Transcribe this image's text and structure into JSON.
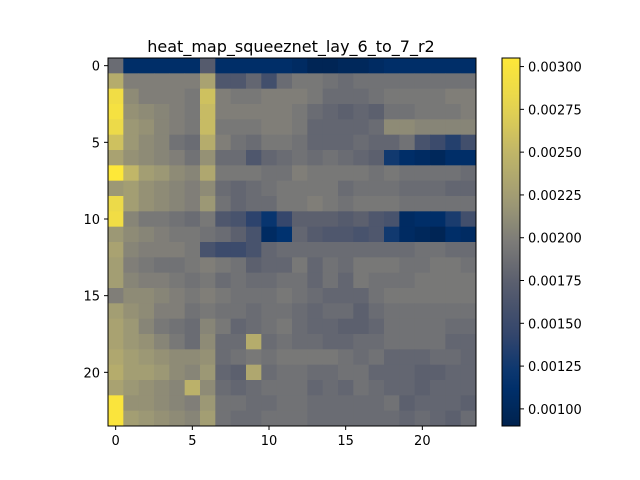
{
  "chart_data": {
    "type": "heatmap",
    "title": "heat_map_squeeznet_lay_6_to_7_r2",
    "xlabel": "",
    "ylabel": "",
    "colormap": "cividis",
    "vmin": 0.0009,
    "vmax": 0.00305,
    "x_ticks": [
      0,
      5,
      10,
      15,
      20
    ],
    "y_ticks": [
      0,
      5,
      10,
      15,
      20
    ],
    "colorbar_ticks": [
      "0.00100",
      "0.00125",
      "0.00150",
      "0.00175",
      "0.00200",
      "0.00225",
      "0.00250",
      "0.00275",
      "0.00300"
    ],
    "colorbar_tick_values": [
      0.001,
      0.00125,
      0.0015,
      0.00175,
      0.002,
      0.00225,
      0.0025,
      0.00275,
      0.003
    ],
    "values": [
      [
        0.00185,
        0.0011,
        0.0011,
        0.0011,
        0.0011,
        0.0011,
        0.0017,
        0.0011,
        0.0011,
        0.0011,
        0.0011,
        0.0011,
        0.00105,
        0.00095,
        0.00095,
        0.001,
        0.001,
        0.00105,
        0.0011,
        0.0011,
        0.0011,
        0.0011,
        0.0011,
        0.0011
      ],
      [
        0.0024,
        0.002,
        0.002,
        0.002,
        0.002,
        0.002,
        0.0023,
        0.00165,
        0.00165,
        0.0018,
        0.00155,
        0.00185,
        0.00195,
        0.00195,
        0.0019,
        0.00185,
        0.0019,
        0.0019,
        0.0019,
        0.0019,
        0.0019,
        0.0019,
        0.0019,
        0.0019
      ],
      [
        0.0029,
        0.0021,
        0.002,
        0.002,
        0.002,
        0.00195,
        0.0026,
        0.002,
        0.00195,
        0.00195,
        0.002,
        0.002,
        0.002,
        0.00195,
        0.00185,
        0.00185,
        0.00185,
        0.0019,
        0.00195,
        0.00195,
        0.00195,
        0.00195,
        0.002,
        0.002
      ],
      [
        0.00295,
        0.00215,
        0.0021,
        0.00205,
        0.002,
        0.00195,
        0.00255,
        0.002,
        0.002,
        0.002,
        0.002,
        0.002,
        0.00195,
        0.00185,
        0.0018,
        0.00175,
        0.0018,
        0.00175,
        0.0019,
        0.0019,
        0.00195,
        0.00195,
        0.00195,
        0.002
      ],
      [
        0.00285,
        0.0022,
        0.00215,
        0.00205,
        0.002,
        0.00195,
        0.00255,
        0.00195,
        0.00195,
        0.00195,
        0.002,
        0.002,
        0.00195,
        0.0018,
        0.0018,
        0.0018,
        0.0018,
        0.00185,
        0.0021,
        0.0021,
        0.00205,
        0.00205,
        0.00205,
        0.00205
      ],
      [
        0.0026,
        0.0022,
        0.0021,
        0.00205,
        0.0019,
        0.00185,
        0.0024,
        0.002,
        0.0019,
        0.00185,
        0.00195,
        0.00195,
        0.0019,
        0.0018,
        0.0018,
        0.0018,
        0.00185,
        0.0018,
        0.0018,
        0.0019,
        0.0016,
        0.0015,
        0.00135,
        0.00155
      ],
      [
        0.0023,
        0.00215,
        0.0021,
        0.00205,
        0.002,
        0.0019,
        0.00215,
        0.00185,
        0.00185,
        0.00165,
        0.0018,
        0.00185,
        0.0019,
        0.00185,
        0.0019,
        0.00185,
        0.0018,
        0.00175,
        0.00125,
        0.0011,
        0.00105,
        0.001,
        0.0011,
        0.0011
      ],
      [
        0.00305,
        0.0025,
        0.00225,
        0.0022,
        0.0021,
        0.00205,
        0.00235,
        0.00195,
        0.00195,
        0.00195,
        0.0019,
        0.0019,
        0.002,
        0.00195,
        0.00195,
        0.00195,
        0.00195,
        0.0019,
        0.00195,
        0.0019,
        0.0019,
        0.0019,
        0.0019,
        0.00185
      ],
      [
        0.0022,
        0.00225,
        0.00215,
        0.0021,
        0.00205,
        0.002,
        0.0021,
        0.00185,
        0.0018,
        0.00185,
        0.0019,
        0.00195,
        0.00195,
        0.00195,
        0.00195,
        0.00185,
        0.0019,
        0.0019,
        0.0019,
        0.00185,
        0.00185,
        0.00185,
        0.0018,
        0.0018
      ],
      [
        0.00285,
        0.00225,
        0.00215,
        0.0021,
        0.00205,
        0.002,
        0.0022,
        0.0019,
        0.0018,
        0.00185,
        0.00185,
        0.00195,
        0.00195,
        0.002,
        0.00195,
        0.0019,
        0.00195,
        0.00195,
        0.00195,
        0.0019,
        0.0019,
        0.0019,
        0.0019,
        0.0019
      ],
      [
        0.0029,
        0.00205,
        0.00195,
        0.00195,
        0.0019,
        0.00185,
        0.00195,
        0.00165,
        0.0016,
        0.0014,
        0.0012,
        0.00145,
        0.00175,
        0.00175,
        0.00175,
        0.0017,
        0.00175,
        0.00165,
        0.0016,
        0.00105,
        0.0011,
        0.0011,
        0.0013,
        0.00155
      ],
      [
        0.0022,
        0.0021,
        0.00205,
        0.002,
        0.00195,
        0.00195,
        0.0019,
        0.00185,
        0.00175,
        0.0016,
        0.00105,
        0.00115,
        0.0018,
        0.0017,
        0.00165,
        0.00165,
        0.0016,
        0.00165,
        0.00125,
        0.00105,
        0.001,
        0.00095,
        0.0011,
        0.00105
      ],
      [
        0.0023,
        0.00205,
        0.002,
        0.002,
        0.002,
        0.00195,
        0.0016,
        0.0015,
        0.0015,
        0.0016,
        0.0018,
        0.00185,
        0.00185,
        0.00185,
        0.00185,
        0.00185,
        0.00185,
        0.00185,
        0.00185,
        0.00185,
        0.0019,
        0.0019,
        0.00185,
        0.00185
      ],
      [
        0.00225,
        0.002,
        0.00195,
        0.0019,
        0.0019,
        0.00195,
        0.002,
        0.00195,
        0.0019,
        0.00175,
        0.0018,
        0.0018,
        0.00195,
        0.0018,
        0.0019,
        0.00185,
        0.00195,
        0.00195,
        0.00195,
        0.0019,
        0.0019,
        0.00195,
        0.00195,
        0.0019
      ],
      [
        0.00225,
        0.00205,
        0.002,
        0.002,
        0.00195,
        0.0019,
        0.00195,
        0.00185,
        0.0019,
        0.00185,
        0.00185,
        0.0019,
        0.0019,
        0.0018,
        0.0019,
        0.0018,
        0.00195,
        0.0019,
        0.0019,
        0.0019,
        0.00195,
        0.00195,
        0.00195,
        0.00195
      ],
      [
        0.002,
        0.0021,
        0.0021,
        0.00205,
        0.002,
        0.00195,
        0.002,
        0.00195,
        0.0019,
        0.0019,
        0.0019,
        0.00195,
        0.0019,
        0.00185,
        0.0018,
        0.0018,
        0.0018,
        0.0019,
        0.00195,
        0.00195,
        0.00195,
        0.00195,
        0.00195,
        0.00195
      ],
      [
        0.00225,
        0.00215,
        0.0021,
        0.002,
        0.002,
        0.0019,
        0.00195,
        0.0019,
        0.0019,
        0.00185,
        0.0019,
        0.0019,
        0.00185,
        0.0018,
        0.00185,
        0.00185,
        0.00175,
        0.00185,
        0.0019,
        0.0019,
        0.0019,
        0.0019,
        0.0019,
        0.0019
      ],
      [
        0.0023,
        0.0022,
        0.00205,
        0.00195,
        0.0019,
        0.00185,
        0.00205,
        0.00195,
        0.0018,
        0.00185,
        0.0019,
        0.00195,
        0.00185,
        0.0018,
        0.0018,
        0.00175,
        0.00175,
        0.0018,
        0.0019,
        0.0019,
        0.0019,
        0.0019,
        0.00185,
        0.00185
      ],
      [
        0.0023,
        0.0022,
        0.00215,
        0.00205,
        0.00195,
        0.00185,
        0.0021,
        0.00185,
        0.00185,
        0.0024,
        0.00185,
        0.0019,
        0.00185,
        0.00185,
        0.0018,
        0.0018,
        0.00185,
        0.00185,
        0.0019,
        0.0019,
        0.0019,
        0.0019,
        0.0018,
        0.0018
      ],
      [
        0.00235,
        0.00225,
        0.0022,
        0.00215,
        0.0021,
        0.0021,
        0.00215,
        0.00185,
        0.0019,
        0.00195,
        0.0019,
        0.00195,
        0.00195,
        0.00195,
        0.00195,
        0.0019,
        0.00185,
        0.0019,
        0.0018,
        0.0018,
        0.0018,
        0.00185,
        0.00185,
        0.0018
      ],
      [
        0.0024,
        0.00225,
        0.00225,
        0.0022,
        0.0021,
        0.00205,
        0.0022,
        0.0018,
        0.00175,
        0.00235,
        0.00185,
        0.0019,
        0.0019,
        0.00185,
        0.00185,
        0.0019,
        0.0019,
        0.0018,
        0.0018,
        0.0018,
        0.00175,
        0.00175,
        0.0018,
        0.0018
      ],
      [
        0.0023,
        0.0022,
        0.00215,
        0.0021,
        0.00205,
        0.00245,
        0.0021,
        0.00185,
        0.0018,
        0.00185,
        0.0019,
        0.0019,
        0.0019,
        0.0018,
        0.00185,
        0.0018,
        0.0019,
        0.00185,
        0.0018,
        0.0018,
        0.00175,
        0.0018,
        0.0018,
        0.0018
      ],
      [
        0.003,
        0.00215,
        0.00215,
        0.0021,
        0.00205,
        0.002,
        0.0022,
        0.0019,
        0.0019,
        0.00185,
        0.00185,
        0.0019,
        0.0019,
        0.00185,
        0.00185,
        0.00185,
        0.00185,
        0.00185,
        0.0019,
        0.00175,
        0.0018,
        0.0018,
        0.0018,
        0.00175
      ],
      [
        0.003,
        0.00225,
        0.0022,
        0.00215,
        0.0021,
        0.00205,
        0.00225,
        0.0019,
        0.00185,
        0.00185,
        0.0019,
        0.0019,
        0.0019,
        0.00185,
        0.00185,
        0.00185,
        0.00185,
        0.00185,
        0.00185,
        0.0018,
        0.00185,
        0.0018,
        0.00175,
        0.00185
      ]
    ]
  }
}
